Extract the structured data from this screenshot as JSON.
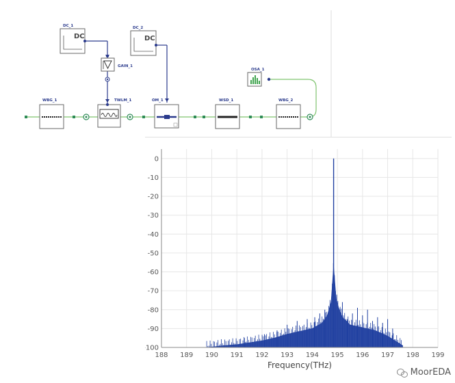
{
  "schematic": {
    "components": {
      "dc1": "DC_1",
      "dc2": "DC_2",
      "gain1": "GAIN_1",
      "twlm1": "TWLM_1",
      "om1": "OM_1",
      "osa1": "OSA_1",
      "wbg1": "WBG_1",
      "wsd1": "WSD_1",
      "wbg2": "WBG_2"
    },
    "dc_symbol_text": "DC",
    "colors": {
      "wire": "#2a3a8c",
      "optical_wire": "#7ec36e",
      "port": "#2e8b57"
    }
  },
  "chart_data": {
    "type": "line",
    "title": "",
    "xlabel": "Frequency(THz)",
    "ylabel": "",
    "xlim": [
      188,
      199
    ],
    "ylim": [
      -100,
      5
    ],
    "xticks": [
      "188",
      "189",
      "190",
      "191",
      "192",
      "193",
      "194",
      "195",
      "196",
      "197",
      "198",
      "199"
    ],
    "yticks": [
      "0",
      "-10",
      "-20",
      "-30",
      "-40",
      "-50",
      "-60",
      "-70",
      "-80",
      "-90",
      "-100"
    ],
    "grid": true,
    "series": [
      {
        "color": "#1f3fa0",
        "peak": {
          "x": 194.85,
          "y": 0
        },
        "envelope": {
          "x": [
            189.8,
            190.5,
            191.0,
            191.5,
            192.0,
            192.5,
            193.0,
            193.5,
            194.0,
            194.4,
            194.6,
            194.75,
            194.85,
            194.95,
            195.05,
            195.2,
            195.5,
            196.0,
            196.5,
            197.0,
            197.3,
            197.6
          ],
          "y": [
            -100,
            -99,
            -98.5,
            -97.5,
            -96.5,
            -95,
            -93,
            -91.5,
            -90,
            -87,
            -83,
            -76,
            -57,
            -74,
            -79,
            -84,
            -88,
            -89.5,
            -91,
            -94,
            -96.5,
            -99
          ]
        },
        "tall_spurs": {
          "x": [
            191.3,
            192.1,
            192.6,
            193.0,
            193.4,
            193.8,
            194.1,
            194.3,
            194.5,
            195.2,
            195.4,
            195.6,
            195.8,
            196.0,
            196.2,
            196.4,
            196.6,
            196.8,
            197.0,
            197.2
          ],
          "y": [
            -95,
            -93,
            -91,
            -88,
            -86,
            -85,
            -84,
            -82,
            -80,
            -76,
            -85,
            -82,
            -79,
            -83,
            -80,
            -86,
            -84,
            -87,
            -85,
            -90
          ]
        }
      }
    ]
  },
  "watermark": {
    "text": "MoorEDA"
  }
}
